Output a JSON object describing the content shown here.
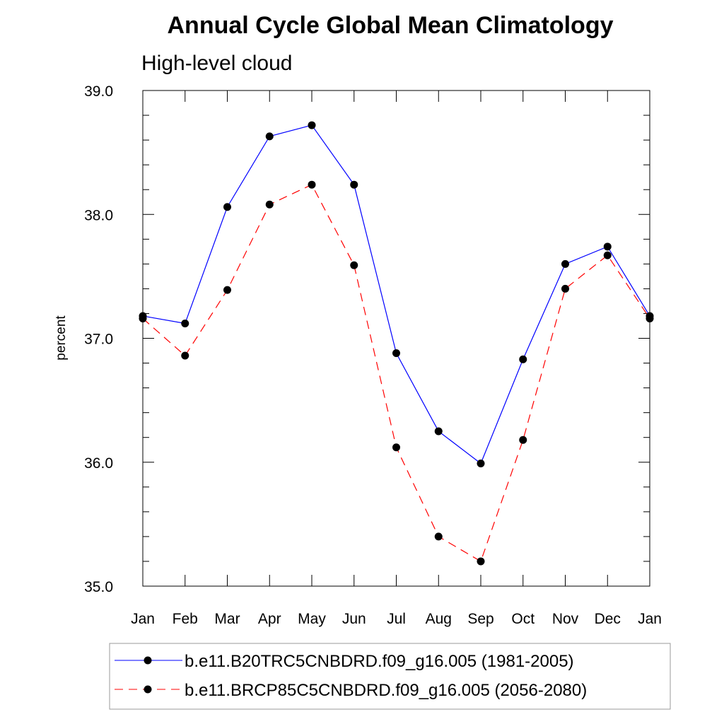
{
  "chart_data": {
    "type": "line",
    "title": "Annual Cycle Global Mean Climatology",
    "subtitle": "High-level cloud",
    "xlabel": "",
    "ylabel": "percent",
    "categories": [
      "Jan",
      "Feb",
      "Mar",
      "Apr",
      "May",
      "Jun",
      "Jul",
      "Aug",
      "Sep",
      "Oct",
      "Nov",
      "Dec",
      "Jan"
    ],
    "ylim": [
      35.0,
      39.0
    ],
    "yticks": [
      "35.0",
      "36.0",
      "37.0",
      "38.0",
      "39.0"
    ],
    "ytick_values": [
      35.0,
      36.0,
      37.0,
      38.0,
      39.0
    ],
    "grid": false,
    "legend_position": "bottom",
    "series": [
      {
        "name": "b.e11.B20TRC5CNBDRD.f09_g16.005 (1981-2005)",
        "color": "#0000ff",
        "dash": "solid",
        "values": [
          37.18,
          37.12,
          38.06,
          38.63,
          38.72,
          38.24,
          36.88,
          36.25,
          35.99,
          36.83,
          37.6,
          37.74,
          37.18
        ]
      },
      {
        "name": "b.e11.BRCP85C5CNBDRD.f09_g16.005 (2056-2080)",
        "color": "#ff0000",
        "dash": "dashed",
        "values": [
          37.16,
          36.86,
          37.39,
          38.08,
          38.24,
          37.59,
          36.12,
          35.4,
          35.2,
          36.18,
          37.4,
          37.67,
          37.16
        ]
      }
    ]
  }
}
